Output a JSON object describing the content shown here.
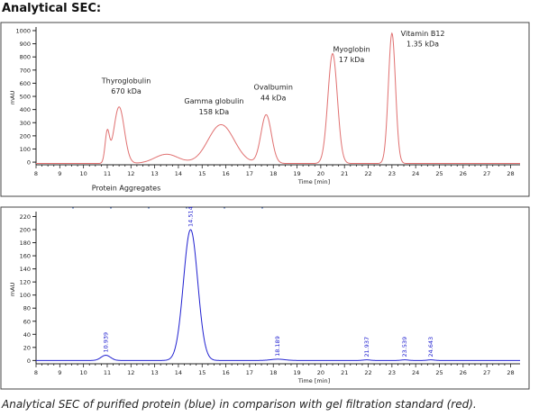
{
  "page": {
    "heading": "Analytical SEC:",
    "caption": "Analytical SEC of purified protein (blue) in comparison with gel filtration standard (red)."
  },
  "chart_data": [
    {
      "type": "line",
      "name": "gel-filtration-standard",
      "xlabel": "Time [min]",
      "ylabel": "mAU",
      "xlim": [
        8,
        28.4
      ],
      "ylim": [
        -20,
        1000
      ],
      "xticks": [
        8,
        9,
        10,
        11,
        12,
        13,
        14,
        15,
        16,
        17,
        18,
        19,
        20,
        21,
        22,
        23,
        24,
        25,
        26,
        27,
        28
      ],
      "yticks": [
        0,
        100,
        200,
        300,
        400,
        500,
        600,
        700,
        800,
        900,
        1000
      ],
      "line_color": "#e07070",
      "baseline": -10,
      "peaks": [
        {
          "x": 11.0,
          "y": 225,
          "w": 0.09
        },
        {
          "x": 11.5,
          "y": 430,
          "w": 0.22
        },
        {
          "x": 13.5,
          "y": 70,
          "w": 0.5
        },
        {
          "x": 15.8,
          "y": 295,
          "w": 0.55
        },
        {
          "x": 17.7,
          "y": 370,
          "w": 0.22
        },
        {
          "x": 20.5,
          "y": 835,
          "w": 0.2
        },
        {
          "x": 23.0,
          "y": 990,
          "w": 0.15
        }
      ],
      "annotations": [
        {
          "text": "Thyroglobulin",
          "x": 11.8,
          "y": 600
        },
        {
          "text": "670 kDa",
          "x": 11.8,
          "y": 520
        },
        {
          "text": "Gamma globulin",
          "x": 15.5,
          "y": 445
        },
        {
          "text": "158 kDa",
          "x": 15.5,
          "y": 365
        },
        {
          "text": "Ovalbumin",
          "x": 18.0,
          "y": 550
        },
        {
          "text": "44 kDa",
          "x": 18.0,
          "y": 470
        },
        {
          "text": "Myoglobin",
          "x": 21.3,
          "y": 840
        },
        {
          "text": "17 kDa",
          "x": 21.3,
          "y": 760
        },
        {
          "text": "Vitamin B12",
          "x": 24.3,
          "y": 960
        },
        {
          "text": "1.35 kDa",
          "x": 24.3,
          "y": 880
        },
        {
          "text": "Protein Aggregates",
          "x": 11.8,
          "y": -215
        }
      ]
    },
    {
      "type": "line",
      "name": "purified-protein",
      "xlabel": "Time [min]",
      "ylabel": "mAU",
      "xlim": [
        8,
        28.4
      ],
      "ylim": [
        -5,
        222
      ],
      "xticks": [
        8,
        9,
        10,
        11,
        12,
        13,
        14,
        15,
        16,
        17,
        18,
        19,
        20,
        21,
        22,
        23,
        24,
        25,
        26,
        27,
        28
      ],
      "yticks": [
        0,
        20,
        40,
        60,
        80,
        100,
        120,
        140,
        160,
        180,
        200,
        220
      ],
      "line_color": "#2020d0",
      "baseline": 0,
      "peaks": [
        {
          "x": 10.939,
          "y": 8,
          "w": 0.2
        },
        {
          "x": 14.514,
          "y": 200,
          "w": 0.3
        },
        {
          "x": 18.189,
          "y": 2,
          "w": 0.3
        },
        {
          "x": 21.937,
          "y": 1,
          "w": 0.15
        },
        {
          "x": 23.539,
          "y": 1,
          "w": 0.15
        },
        {
          "x": 24.643,
          "y": 1,
          "w": 0.15
        }
      ],
      "peak_labels": [
        "10.939",
        "14.514",
        "18.189",
        "21.937",
        "23.539",
        "24.643"
      ]
    }
  ]
}
